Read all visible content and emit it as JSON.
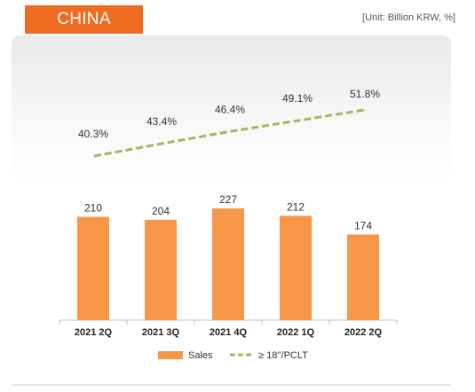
{
  "header": {
    "tab_label": "CHINA",
    "unit": "[Unit: Billion KRW, %]"
  },
  "colors": {
    "accent": "#ee6b1f",
    "bar": "#f79646",
    "line": "#9bbb59"
  },
  "chart_data": {
    "type": "bar",
    "categories": [
      "2021 2Q",
      "2021 3Q",
      "2021 4Q",
      "2022 1Q",
      "2022 2Q"
    ],
    "series": [
      {
        "name": "Sales",
        "type": "bar",
        "values": [
          210,
          204,
          227,
          212,
          174
        ],
        "labels": [
          "210",
          "204",
          "227",
          "212",
          "174"
        ]
      },
      {
        "name": "≥ 18''/PCLT",
        "type": "line",
        "style": "dashed",
        "values": [
          40.3,
          43.4,
          46.4,
          49.1,
          51.8
        ],
        "labels": [
          "40.3%",
          "43.4%",
          "46.4%",
          "49.1%",
          "51.8%"
        ]
      }
    ],
    "legend_position": "bottom",
    "grid": false
  }
}
